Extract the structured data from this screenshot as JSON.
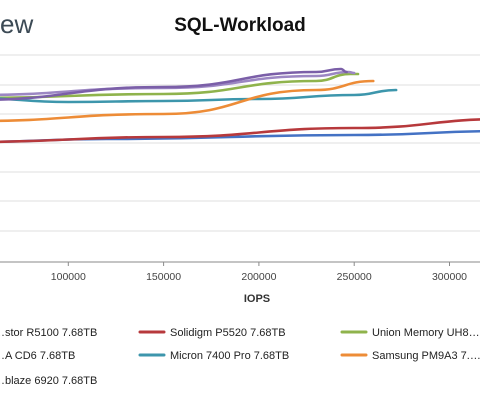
{
  "header": {
    "brand_fragment": "ew"
  },
  "chart_data": {
    "type": "line",
    "title": "SQL-Workload",
    "xlabel": "IOPS",
    "ylabel": "",
    "x_ticks": [
      100000,
      150000,
      200000,
      250000,
      300000
    ],
    "x_tick_labels": [
      "100000",
      "150000",
      "200000",
      "250000",
      "300000"
    ],
    "grid": true,
    "legend_position": "bottom",
    "series": [
      {
        "name": "…stor R5100 7.68TB",
        "color": "#4472C4",
        "points": [
          [
            50000,
            142
          ],
          [
            120000,
            139
          ],
          [
            250000,
            135
          ],
          [
            330000,
            131
          ]
        ]
      },
      {
        "name": "Solidigm P5520 7.68TB",
        "color": "#B7393C",
        "points": [
          [
            50000,
            142
          ],
          [
            150000,
            137
          ],
          [
            250000,
            128
          ],
          [
            330000,
            119
          ]
        ]
      },
      {
        "name": "Union Memory UH8…",
        "color": "#8FB34C",
        "points": [
          [
            50000,
            98
          ],
          [
            150000,
            94
          ],
          [
            230000,
            81
          ],
          [
            248000,
            74
          ],
          [
            252000,
            74
          ]
        ]
      },
      {
        "name": "…A CD6 7.68TB",
        "color": "#9C87C3",
        "points": [
          [
            50000,
            95
          ],
          [
            150000,
            88
          ],
          [
            230000,
            76
          ],
          [
            247000,
            72
          ],
          [
            250000,
            73
          ]
        ]
      },
      {
        "name": "Micron 7400 Pro 7.68TB",
        "color": "#3D96AC",
        "points": [
          [
            50000,
            98
          ],
          [
            100000,
            102
          ],
          [
            150000,
            101
          ],
          [
            200000,
            99
          ],
          [
            250000,
            95
          ],
          [
            272000,
            90
          ]
        ]
      },
      {
        "name": "Samsung PM9A3 7.…",
        "color": "#ED8C37",
        "points": [
          [
            50000,
            121
          ],
          [
            150000,
            114
          ],
          [
            230000,
            90
          ],
          [
            260000,
            81
          ]
        ]
      },
      {
        "name": "…blaze 6920 7.68TB",
        "color": "#7B5FA8",
        "points": [
          [
            50000,
            100
          ],
          [
            150000,
            87
          ],
          [
            230000,
            72
          ],
          [
            243000,
            69
          ],
          [
            246000,
            72
          ]
        ]
      }
    ]
  }
}
